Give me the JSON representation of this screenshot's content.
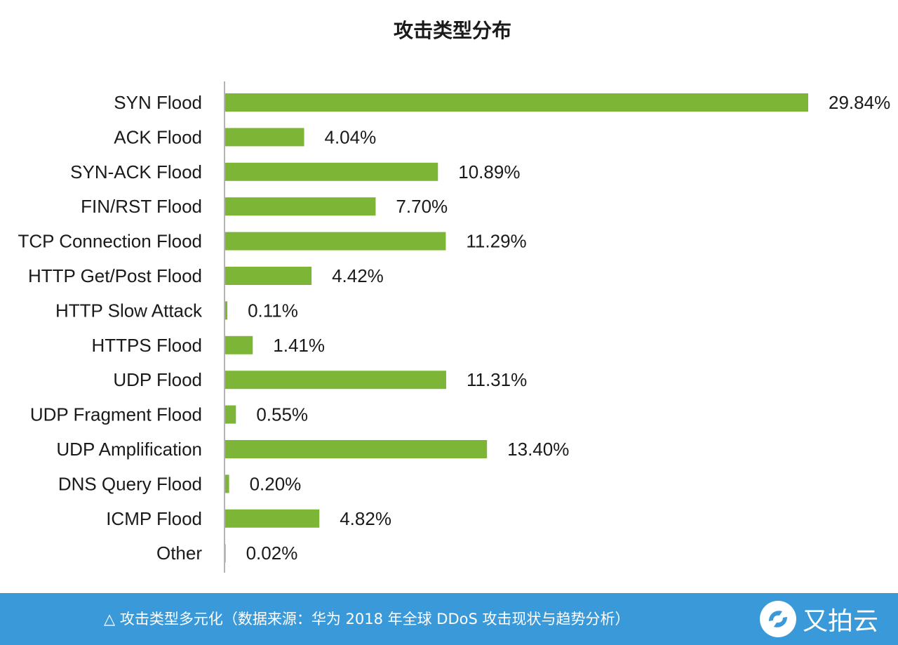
{
  "chart_data": {
    "type": "bar",
    "orientation": "horizontal",
    "title": "攻击类型分布",
    "bar_color": "#7db536",
    "categories": [
      "SYN Flood",
      "ACK Flood",
      "SYN-ACK Flood",
      "FIN/RST Flood",
      "TCP Connection Flood",
      "HTTP Get/Post Flood",
      "HTTP Slow Attack",
      "HTTPS Flood",
      "UDP Flood",
      "UDP Fragment Flood",
      "UDP Amplification",
      "DNS Query Flood",
      "ICMP Flood",
      "Other"
    ],
    "values": [
      29.84,
      4.04,
      10.89,
      7.7,
      11.29,
      4.42,
      0.11,
      1.41,
      11.31,
      0.55,
      13.4,
      0.2,
      4.82,
      0.02
    ],
    "data_labels": [
      "29.84%",
      "4.04%",
      "10.89%",
      "7.70%",
      "11.29%",
      "4.42%",
      "0.11%",
      "1.41%",
      "11.31%",
      "0.55%",
      "13.40%",
      "0.20%",
      "4.82%",
      "0.02%"
    ],
    "unit": "%",
    "grid": false,
    "legend": "none"
  },
  "footer": {
    "caption": "△ 攻击类型多元化（数据来源：华为 2018 年全球 DDoS 攻击现状与趋势分析）",
    "logo_text": "又拍云",
    "background_color": "#3a9ad9"
  }
}
